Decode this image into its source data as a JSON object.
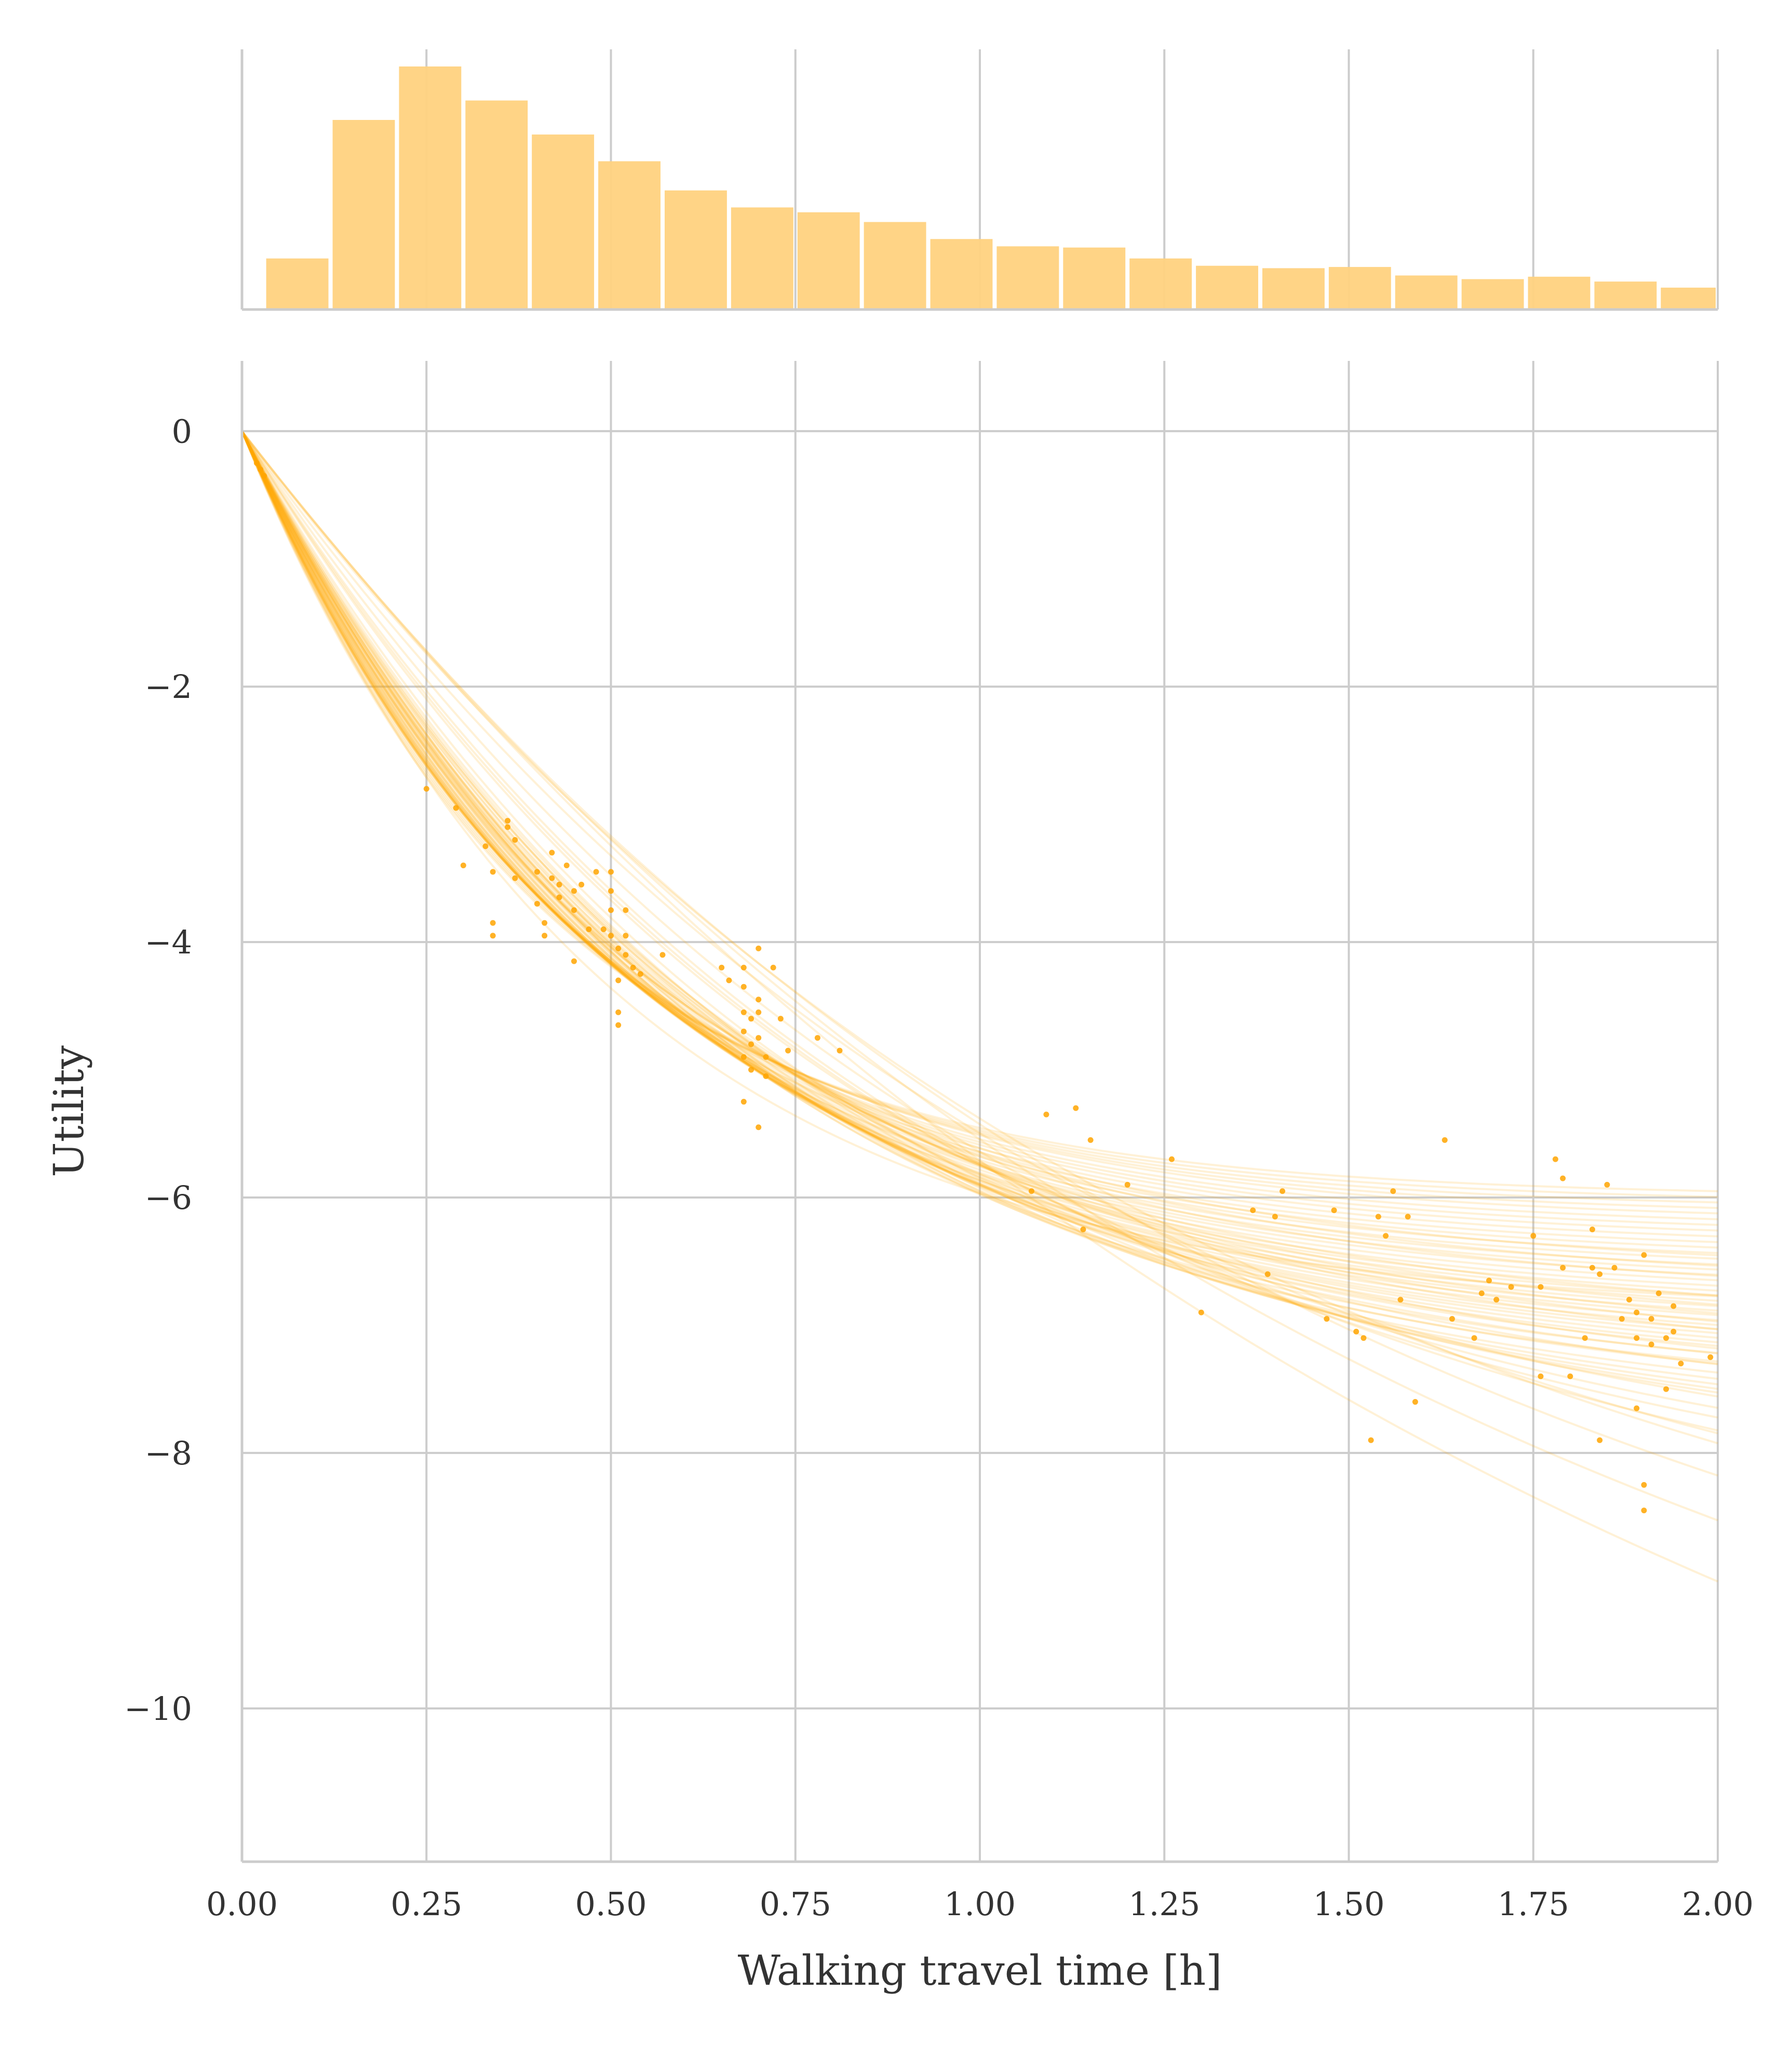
{
  "colors": {
    "accent": "#FFA500",
    "hist_fill": "#FFD27F",
    "grid": "#CCCCCC",
    "spine": "#CCCCCC",
    "text": "#333333"
  },
  "chart_data": [
    {
      "type": "bar",
      "panel": "marginal-histogram",
      "x_bin_edges": [
        0.03,
        0.12,
        0.21,
        0.3,
        0.39,
        0.48,
        0.57,
        0.66,
        0.75,
        0.84,
        0.93,
        1.02,
        1.11,
        1.2,
        1.29,
        1.38,
        1.47,
        1.56,
        1.65,
        1.74,
        1.83,
        1.92,
        2.01
      ],
      "values": [
        0.21,
        0.78,
        1.0,
        0.86,
        0.72,
        0.61,
        0.49,
        0.42,
        0.4,
        0.36,
        0.29,
        0.26,
        0.255,
        0.21,
        0.18,
        0.17,
        0.175,
        0.14,
        0.125,
        0.135,
        0.115,
        0.09
      ],
      "xlim": [
        0,
        2
      ],
      "grid": true
    },
    {
      "type": "line",
      "panel": "utility-curves",
      "xlabel": "Walking travel time [h]",
      "ylabel": "Utility",
      "xlim": [
        0,
        2
      ],
      "ylim": [
        -11.2,
        0.55
      ],
      "x_ticks": [
        "0.00",
        "0.25",
        "0.50",
        "0.75",
        "1.00",
        "1.25",
        "1.50",
        "1.75",
        "2.00"
      ],
      "y_ticks": [
        "0",
        "−2",
        "−4",
        "−6",
        "−8",
        "−10"
      ],
      "curve_model": "y = -a * (1 - exp(-b * x)); each entry is [a, b]",
      "curves": [
        [
          13.5,
          0.55
        ],
        [
          10.2,
          0.75
        ],
        [
          9.2,
          0.95
        ],
        [
          8.6,
          1.1
        ],
        [
          8.2,
          1.25
        ],
        [
          8.0,
          1.35
        ],
        [
          7.8,
          1.45
        ],
        [
          7.6,
          1.5
        ],
        [
          7.5,
          1.55
        ],
        [
          7.4,
          1.6
        ],
        [
          7.3,
          1.65
        ],
        [
          7.2,
          1.7
        ],
        [
          7.1,
          1.75
        ],
        [
          7.0,
          1.8
        ],
        [
          6.9,
          1.85
        ],
        [
          6.8,
          1.9
        ],
        [
          6.7,
          1.95
        ],
        [
          6.6,
          2.0
        ],
        [
          6.5,
          2.05
        ],
        [
          6.4,
          2.1
        ],
        [
          6.3,
          2.15
        ],
        [
          6.2,
          2.2
        ],
        [
          6.1,
          2.3
        ],
        [
          6.0,
          2.4
        ],
        [
          7.9,
          1.4
        ],
        [
          7.7,
          1.48
        ],
        [
          7.45,
          1.58
        ],
        [
          7.25,
          1.68
        ],
        [
          7.05,
          1.78
        ],
        [
          6.85,
          1.88
        ],
        [
          6.65,
          1.98
        ],
        [
          6.45,
          2.08
        ],
        [
          6.25,
          2.18
        ],
        [
          8.4,
          1.15
        ],
        [
          8.8,
          1.05
        ],
        [
          9.6,
          0.85
        ],
        [
          11.0,
          0.68
        ],
        [
          12.0,
          0.62
        ],
        [
          7.35,
          1.62
        ],
        [
          6.95,
          1.82
        ],
        [
          6.55,
          2.02
        ],
        [
          6.15,
          2.25
        ],
        [
          7.65,
          1.52
        ],
        [
          7.15,
          1.72
        ],
        [
          6.75,
          1.92
        ],
        [
          6.35,
          2.12
        ],
        [
          8.1,
          1.3
        ],
        [
          7.55,
          1.56
        ],
        [
          6.05,
          2.35
        ],
        [
          7.0,
          1.7
        ],
        [
          6.8,
          1.8
        ],
        [
          7.2,
          1.6
        ],
        [
          7.4,
          1.5
        ],
        [
          6.6,
          1.9
        ],
        [
          6.9,
          2.0
        ],
        [
          7.1,
          1.65
        ],
        [
          7.3,
          1.55
        ],
        [
          6.7,
          1.85
        ],
        [
          7.6,
          1.45
        ],
        [
          7.8,
          1.38
        ]
      ],
      "points": [
        [
          0.25,
          -2.8
        ],
        [
          0.29,
          -2.95
        ],
        [
          0.3,
          -3.4
        ],
        [
          0.33,
          -3.25
        ],
        [
          0.34,
          -3.45
        ],
        [
          0.34,
          -3.85
        ],
        [
          0.34,
          -3.95
        ],
        [
          0.36,
          -3.1
        ],
        [
          0.36,
          -3.05
        ],
        [
          0.37,
          -3.2
        ],
        [
          0.37,
          -3.5
        ],
        [
          0.4,
          -3.45
        ],
        [
          0.4,
          -3.7
        ],
        [
          0.41,
          -3.85
        ],
        [
          0.41,
          -3.95
        ],
        [
          0.42,
          -3.3
        ],
        [
          0.42,
          -3.5
        ],
        [
          0.43,
          -3.55
        ],
        [
          0.43,
          -3.65
        ],
        [
          0.44,
          -3.4
        ],
        [
          0.45,
          -3.6
        ],
        [
          0.45,
          -3.75
        ],
        [
          0.45,
          -4.15
        ],
        [
          0.46,
          -3.55
        ],
        [
          0.47,
          -3.9
        ],
        [
          0.48,
          -3.45
        ],
        [
          0.49,
          -3.9
        ],
        [
          0.5,
          -3.45
        ],
        [
          0.5,
          -3.6
        ],
        [
          0.5,
          -3.75
        ],
        [
          0.5,
          -3.95
        ],
        [
          0.51,
          -4.05
        ],
        [
          0.51,
          -4.3
        ],
        [
          0.51,
          -4.55
        ],
        [
          0.51,
          -4.65
        ],
        [
          0.52,
          -3.75
        ],
        [
          0.52,
          -3.95
        ],
        [
          0.52,
          -4.1
        ],
        [
          0.53,
          -4.2
        ],
        [
          0.54,
          -4.25
        ],
        [
          0.57,
          -4.1
        ],
        [
          0.65,
          -4.2
        ],
        [
          0.66,
          -4.3
        ],
        [
          0.68,
          -4.2
        ],
        [
          0.68,
          -4.35
        ],
        [
          0.68,
          -4.55
        ],
        [
          0.68,
          -4.7
        ],
        [
          0.68,
          -4.9
        ],
        [
          0.68,
          -5.25
        ],
        [
          0.69,
          -4.6
        ],
        [
          0.69,
          -4.8
        ],
        [
          0.69,
          -5.0
        ],
        [
          0.7,
          -4.05
        ],
        [
          0.7,
          -4.45
        ],
        [
          0.7,
          -4.55
        ],
        [
          0.7,
          -4.75
        ],
        [
          0.7,
          -5.45
        ],
        [
          0.71,
          -4.9
        ],
        [
          0.71,
          -5.05
        ],
        [
          0.72,
          -4.2
        ],
        [
          0.73,
          -4.6
        ],
        [
          0.74,
          -4.85
        ],
        [
          0.78,
          -4.75
        ],
        [
          0.81,
          -4.85
        ],
        [
          1.07,
          -5.95
        ],
        [
          1.09,
          -5.35
        ],
        [
          1.13,
          -5.3
        ],
        [
          1.14,
          -6.25
        ],
        [
          1.15,
          -5.55
        ],
        [
          1.2,
          -5.9
        ],
        [
          1.26,
          -5.7
        ],
        [
          1.3,
          -6.9
        ],
        [
          1.37,
          -6.1
        ],
        [
          1.39,
          -6.6
        ],
        [
          1.4,
          -6.15
        ],
        [
          1.41,
          -5.95
        ],
        [
          1.47,
          -6.95
        ],
        [
          1.48,
          -6.1
        ],
        [
          1.51,
          -7.05
        ],
        [
          1.52,
          -7.1
        ],
        [
          1.53,
          -7.9
        ],
        [
          1.54,
          -6.15
        ],
        [
          1.55,
          -6.3
        ],
        [
          1.56,
          -5.95
        ],
        [
          1.57,
          -6.8
        ],
        [
          1.58,
          -6.15
        ],
        [
          1.59,
          -7.6
        ],
        [
          1.63,
          -5.55
        ],
        [
          1.64,
          -6.95
        ],
        [
          1.67,
          -7.1
        ],
        [
          1.68,
          -6.75
        ],
        [
          1.69,
          -6.65
        ],
        [
          1.7,
          -6.8
        ],
        [
          1.72,
          -6.7
        ],
        [
          1.75,
          -6.3
        ],
        [
          1.76,
          -6.7
        ],
        [
          1.76,
          -7.4
        ],
        [
          1.78,
          -5.7
        ],
        [
          1.79,
          -5.85
        ],
        [
          1.79,
          -6.55
        ],
        [
          1.8,
          -7.4
        ],
        [
          1.82,
          -7.1
        ],
        [
          1.83,
          -6.25
        ],
        [
          1.83,
          -6.55
        ],
        [
          1.84,
          -6.6
        ],
        [
          1.84,
          -7.9
        ],
        [
          1.85,
          -5.9
        ],
        [
          1.86,
          -6.55
        ],
        [
          1.87,
          -6.95
        ],
        [
          1.88,
          -6.8
        ],
        [
          1.89,
          -6.9
        ],
        [
          1.89,
          -7.1
        ],
        [
          1.89,
          -7.65
        ],
        [
          1.9,
          -6.45
        ],
        [
          1.9,
          -8.25
        ],
        [
          1.91,
          -6.95
        ],
        [
          1.91,
          -7.15
        ],
        [
          1.92,
          -6.75
        ],
        [
          1.93,
          -7.1
        ],
        [
          1.93,
          -7.5
        ],
        [
          1.94,
          -6.85
        ],
        [
          1.94,
          -7.05
        ],
        [
          1.95,
          -7.3
        ],
        [
          1.99,
          -7.25
        ],
        [
          1.9,
          -8.45
        ],
        [
          0.02,
          -0.25
        ],
        [
          0.025,
          -0.3
        ],
        [
          0.03,
          -0.35
        ]
      ],
      "grid": true
    }
  ]
}
